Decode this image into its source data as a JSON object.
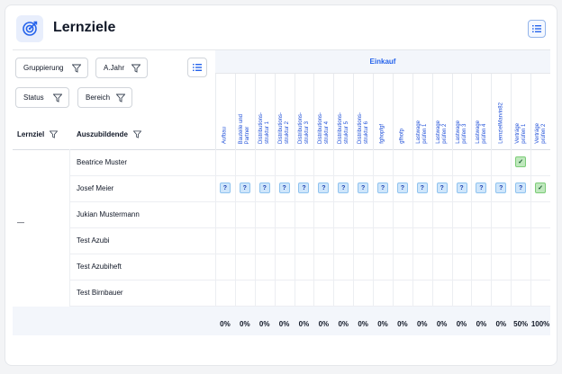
{
  "header": {
    "title": "Lernziele",
    "icon": "target-icon",
    "menu_icon": "list-icon"
  },
  "filters": [
    {
      "label": "Gruppierung"
    },
    {
      "label": "A.Jahr"
    },
    {
      "label": "Status"
    },
    {
      "label": "Bereich"
    }
  ],
  "table": {
    "col_lernziel": "Lernziel",
    "col_auszubildende": "Auszubildende",
    "group_label": "Einkauf",
    "lernziel_value": "—",
    "topics": [
      "Aufbau",
      "Bauteile und\nPartner",
      "Distributions-\nstruktur 1",
      "Distributions-\nstruktur 2",
      "Distributions-\nstruktur 3",
      "Distributions-\nstruktur 4",
      "Distributions-\nstruktur 5",
      "Distributions-\nstruktur 6",
      "fghopfgf",
      "gfhofp",
      "Lastwage\nprüfen 1",
      "Lastwage\nprüfen 2",
      "Lastwage\nprüfen 3",
      "Lastwage\nprüfen 4",
      "LernzielMarvin82",
      "Verträge\nprüfen 1",
      "Verträge\nprüfen 2"
    ],
    "students": [
      {
        "name": "Beatrice Muster",
        "cells": [
          "",
          "",
          "",
          "",
          "",
          "",
          "",
          "",
          "",
          "",
          "",
          "",
          "",
          "",
          "",
          "✓",
          ""
        ]
      },
      {
        "name": "Josef Meier",
        "cells": [
          "?",
          "?",
          "?",
          "?",
          "?",
          "?",
          "?",
          "?",
          "?",
          "?",
          "?",
          "?",
          "?",
          "?",
          "?",
          "?",
          "✓"
        ]
      },
      {
        "name": "Jukian Mustermann",
        "cells": [
          "",
          "",
          "",
          "",
          "",
          "",
          "",
          "",
          "",
          "",
          "",
          "",
          "",
          "",
          "",
          "",
          ""
        ]
      },
      {
        "name": "Test Azubi",
        "cells": [
          "",
          "",
          "",
          "",
          "",
          "",
          "",
          "",
          "",
          "",
          "",
          "",
          "",
          "",
          "",
          "",
          ""
        ]
      },
      {
        "name": "Test Azubiheft",
        "cells": [
          "",
          "",
          "",
          "",
          "",
          "",
          "",
          "",
          "",
          "",
          "",
          "",
          "",
          "",
          "",
          "",
          ""
        ]
      },
      {
        "name": "Test Birnbauer",
        "cells": [
          "",
          "",
          "",
          "",
          "",
          "",
          "",
          "",
          "",
          "",
          "",
          "",
          "",
          "",
          "",
          "",
          ""
        ]
      }
    ],
    "totals": [
      "0%",
      "0%",
      "0%",
      "0%",
      "0%",
      "0%",
      "0%",
      "0%",
      "0%",
      "0%",
      "0%",
      "0%",
      "0%",
      "0%",
      "0%",
      "50%",
      "100%"
    ]
  },
  "colors": {
    "accent": "#2563eb",
    "question_badge": "#cfe6fb",
    "done_badge": "#bfe8bd"
  }
}
